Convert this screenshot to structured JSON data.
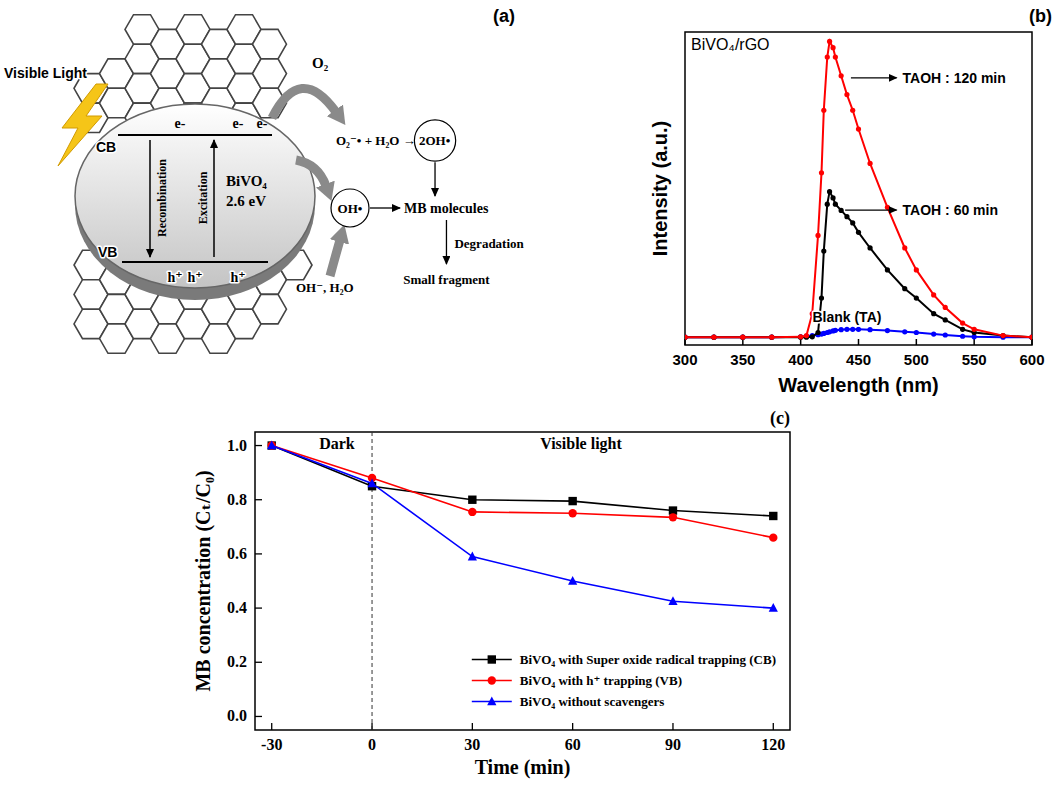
{
  "diagram": {
    "panel_label": "(a)",
    "light": "Visible Light",
    "cb": "CB",
    "vb": "VB",
    "electrons": [
      "e-",
      "e-",
      "e-"
    ],
    "holes": [
      "h⁺",
      "h⁺",
      "h⁺"
    ],
    "recombination": "Recombination",
    "excitation": "Excitation",
    "material": "BiVO₄",
    "band_gap": "2.6 eV",
    "o2": "O₂",
    "superoxide_reaction": "O₂⁻• + H₂O → 2OH•",
    "hydroxyl": "OH•",
    "target": "MB molecules",
    "water": "OH⁻, H₂O",
    "degradation": "Degradation",
    "product": "Small fragment"
  },
  "chart_data": [
    {
      "type": "line",
      "panel_label": "(b)",
      "title": "BiVO₄/rGO",
      "xlabel": "Wavelength (nm)",
      "ylabel": "Intensity (a.u.)",
      "x": [
        300,
        325,
        350,
        375,
        400,
        405,
        410,
        415,
        418,
        420,
        423,
        425,
        428,
        430,
        435,
        440,
        445,
        450,
        460,
        475,
        490,
        500,
        515,
        525,
        540,
        550,
        575,
        600
      ],
      "xlim": [
        300,
        600
      ],
      "xticks": [
        300,
        350,
        400,
        450,
        500,
        550,
        600
      ],
      "ylim": [
        0,
        1
      ],
      "tick_labels": "x",
      "series": [
        {
          "name": "TAOH : 120 min",
          "color": "#ff0000",
          "marker": "circle",
          "line_style": "solid",
          "values": [
            0.025,
            0.025,
            0.025,
            0.025,
            0.026,
            0.03,
            0.1,
            0.35,
            0.55,
            0.75,
            0.92,
            0.97,
            0.95,
            0.92,
            0.86,
            0.8,
            0.75,
            0.69,
            0.58,
            0.44,
            0.31,
            0.24,
            0.16,
            0.12,
            0.07,
            0.05,
            0.03,
            0.025
          ]
        },
        {
          "name": "TAOH : 60 min",
          "color": "#000000",
          "marker": "circle",
          "line_style": "solid",
          "values": [
            0.025,
            0.025,
            0.025,
            0.025,
            0.025,
            0.025,
            0.026,
            0.04,
            0.15,
            0.3,
            0.45,
            0.49,
            0.47,
            0.45,
            0.43,
            0.41,
            0.39,
            0.36,
            0.31,
            0.24,
            0.18,
            0.15,
            0.1,
            0.08,
            0.05,
            0.04,
            0.03,
            0.025
          ]
        },
        {
          "name": "Blank (TA)",
          "color": "#0000ff",
          "marker": "circle",
          "line_style": "solid",
          "values": [
            0.025,
            0.025,
            0.025,
            0.025,
            0.026,
            0.028,
            0.03,
            0.033,
            0.035,
            0.037,
            0.04,
            0.042,
            0.045,
            0.047,
            0.049,
            0.05,
            0.05,
            0.05,
            0.049,
            0.046,
            0.042,
            0.04,
            0.035,
            0.032,
            0.028,
            0.026,
            0.025,
            0.025
          ]
        }
      ]
    },
    {
      "type": "line",
      "panel_label": "(c)",
      "xlabel": "Time (min)",
      "ylabel": "MB concentration (Cₜ/C₀)",
      "x": [
        -30,
        0,
        30,
        60,
        90,
        120
      ],
      "xlim": [
        -35,
        125
      ],
      "xticks": [
        -30,
        0,
        30,
        60,
        90,
        120
      ],
      "ylim": [
        -0.05,
        1.05
      ],
      "yticks": [
        {
          "value": 0,
          "label": "0.0"
        },
        {
          "value": 0.2,
          "label": "0.2"
        },
        {
          "value": 0.4,
          "label": "0.4"
        },
        {
          "value": 0.6,
          "label": "0.6"
        },
        {
          "value": 0.8,
          "label": "0.8"
        },
        {
          "value": 1,
          "label": "1.0"
        }
      ],
      "boundary": 0,
      "annotations": [
        "Dark",
        "Visible light"
      ],
      "legend": "lower right",
      "series": [
        {
          "name": "BiVO₄ with Super oxide radical trapping (CB)",
          "color": "#000000",
          "marker": "square",
          "line_style": "solid",
          "values": [
            1.0,
            0.85,
            0.8,
            0.795,
            0.76,
            0.74
          ]
        },
        {
          "name": "BiVO₄ with h⁺ trapping (VB)",
          "color": "#ff0000",
          "marker": "circle",
          "line_style": "solid",
          "values": [
            1.0,
            0.88,
            0.755,
            0.75,
            0.735,
            0.66
          ]
        },
        {
          "name": "BiVO₄ without scavengers",
          "color": "#0000ff",
          "marker": "triangle",
          "line_style": "solid",
          "values": [
            1.0,
            0.86,
            0.59,
            0.5,
            0.425,
            0.4
          ]
        }
      ]
    }
  ]
}
